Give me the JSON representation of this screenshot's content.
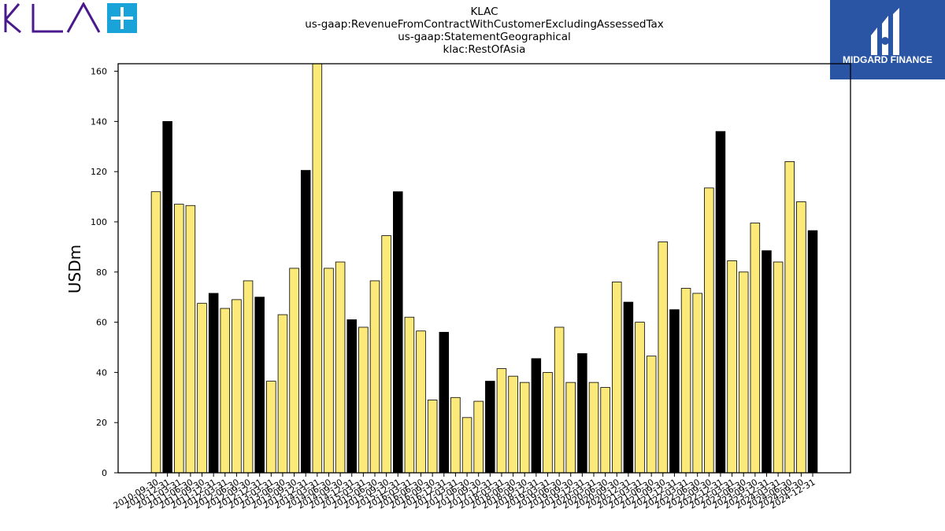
{
  "header": {
    "title_lines": [
      "KLAC",
      "us-gaap:RevenueFromContractWithCustomerExcludingAssessedTax",
      "us-gaap:StatementGeographical",
      "klac:RestOfAsia"
    ]
  },
  "logos": {
    "left": {
      "icon": "kla-plus-logo-icon",
      "text": "KLA",
      "color": "#4a1a8c",
      "accent": "#1aa3d8"
    },
    "right": {
      "icon": "midgard-finance-logo-icon",
      "text": "MIDGARD FINANCE",
      "background": "#2a55a5"
    }
  },
  "chart_data": {
    "type": "bar",
    "ylabel": "USDm",
    "xlabel": "",
    "ylim": [
      0,
      163
    ],
    "yticks": [
      0,
      20,
      40,
      60,
      80,
      100,
      120,
      140,
      160
    ],
    "grid": false,
    "legend": "none",
    "colors": {
      "quarter": "#fbe97a",
      "fiscal_year_end": "#000000",
      "edge": "#000000"
    },
    "categories": [
      "2010-09-30",
      "2010-12-31",
      "2011-03-31",
      "2011-06-30",
      "2011-09-30",
      "2011-12-31",
      "2012-03-31",
      "2012-06-30",
      "2012-09-30",
      "2012-12-31",
      "2013-03-31",
      "2013-06-30",
      "2013-09-30",
      "2013-12-31",
      "2014-03-31",
      "2014-06-30",
      "2014-09-30",
      "2014-12-31",
      "2015-03-31",
      "2015-06-30",
      "2015-09-30",
      "2015-12-31",
      "2016-03-31",
      "2016-06-30",
      "2016-09-30",
      "2016-12-31",
      "2017-03-31",
      "2017-06-30",
      "2017-09-30",
      "2017-12-31",
      "2018-03-31",
      "2018-06-30",
      "2018-09-30",
      "2018-12-31",
      "2019-03-31",
      "2019-06-30",
      "2019-09-30",
      "2019-12-31",
      "2020-03-31",
      "2020-06-30",
      "2020-09-30",
      "2020-12-31",
      "2021-03-31",
      "2021-06-30",
      "2021-09-30",
      "2021-12-31",
      "2022-03-31",
      "2022-06-30",
      "2022-09-30",
      "2022-12-31",
      "2023-03-31",
      "2023-06-30",
      "2023-09-30",
      "2023-12-31",
      "2024-03-31",
      "2024-06-30",
      "2024-09-30",
      "2024-12-31"
    ],
    "values": [
      112,
      140,
      107,
      106.5,
      67.5,
      71.5,
      65.5,
      69,
      76.5,
      70,
      36.5,
      63,
      81.5,
      120.5,
      163,
      81.5,
      84,
      61,
      58,
      76.5,
      94.5,
      112,
      62,
      56.5,
      29,
      56,
      30,
      22,
      28.5,
      36.5,
      41.5,
      38.5,
      36,
      45.5,
      40,
      58,
      36,
      47.5,
      36,
      34,
      76,
      68,
      60,
      46.5,
      92,
      65,
      73.5,
      71.5,
      113.5,
      136,
      84.5,
      80,
      99.5,
      88.5,
      84,
      124,
      108,
      96.5
    ],
    "highlight": [
      false,
      true,
      false,
      false,
      false,
      true,
      false,
      false,
      false,
      true,
      false,
      false,
      false,
      true,
      false,
      false,
      false,
      true,
      false,
      false,
      false,
      true,
      false,
      false,
      false,
      true,
      false,
      false,
      false,
      true,
      false,
      false,
      false,
      true,
      false,
      false,
      false,
      true,
      false,
      false,
      false,
      true,
      false,
      false,
      false,
      true,
      false,
      false,
      false,
      true,
      false,
      false,
      false,
      true,
      false,
      false,
      false,
      true
    ]
  }
}
